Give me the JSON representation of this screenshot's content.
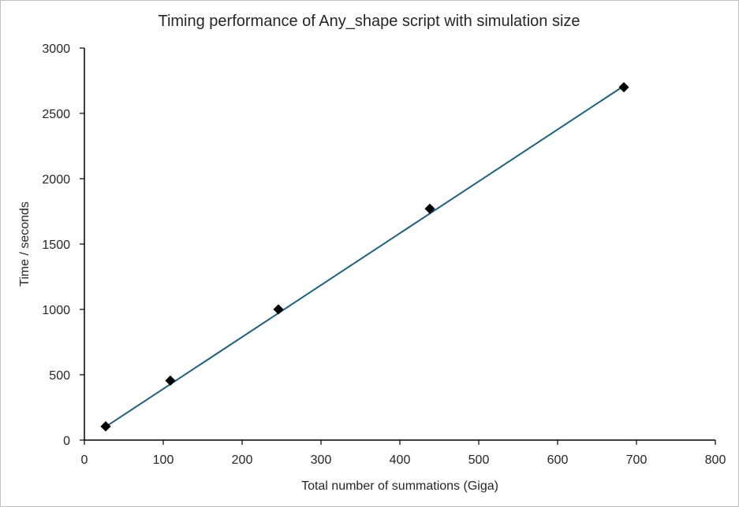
{
  "chart_data": {
    "type": "scatter",
    "title": "Timing performance of Any_shape script with simulation size",
    "xlabel": "Total number of summations (Giga)",
    "ylabel": "Time / seconds",
    "xlim": [
      0,
      800
    ],
    "ylim": [
      0,
      3000
    ],
    "xticks": [
      0,
      100,
      200,
      300,
      400,
      500,
      600,
      700,
      800
    ],
    "yticks": [
      0,
      500,
      1000,
      1500,
      2000,
      2500,
      3000
    ],
    "grid": false,
    "legend": "none",
    "series": [
      {
        "x": [
          27,
          109,
          246,
          438,
          684
        ],
        "y": [
          105,
          455,
          1000,
          1770,
          2700
        ],
        "marker": "diamond",
        "marker_color": "#000000"
      }
    ],
    "trendline": {
      "type": "linear",
      "color": "#1f5f7f",
      "x": [
        27,
        684
      ],
      "y": [
        102,
        2710
      ]
    }
  }
}
